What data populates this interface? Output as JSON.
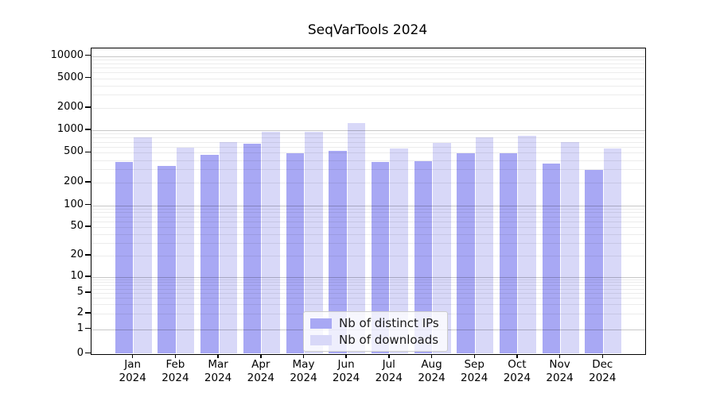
{
  "title": "SeqVarTools 2024",
  "chart_data": {
    "type": "bar",
    "title": "SeqVarTools 2024",
    "yscale": "log-with-zero",
    "ylim": [
      0,
      10000
    ],
    "grid": true,
    "legend_position": "bottom-center-inside",
    "categories": [
      "Jan 2024",
      "Feb 2024",
      "Mar 2024",
      "Apr 2024",
      "May 2024",
      "Jun 2024",
      "Jul 2024",
      "Aug 2024",
      "Sep 2024",
      "Oct 2024",
      "Nov 2024",
      "Dec 2024"
    ],
    "yticks": [
      10000,
      5000,
      2000,
      1000,
      500,
      200,
      100,
      50,
      20,
      10,
      5,
      2,
      1,
      0
    ],
    "series": [
      {
        "name": "Nb of distinct IPs",
        "color": "#a8a8f4",
        "values": [
          380,
          335,
          465,
          660,
          495,
          535,
          380,
          390,
          490,
          490,
          360,
          295
        ]
      },
      {
        "name": "Nb of downloads",
        "color": "#d8d8f8",
        "values": [
          810,
          590,
          690,
          945,
          945,
          1235,
          575,
          675,
          805,
          845,
          695,
          575
        ]
      }
    ]
  }
}
